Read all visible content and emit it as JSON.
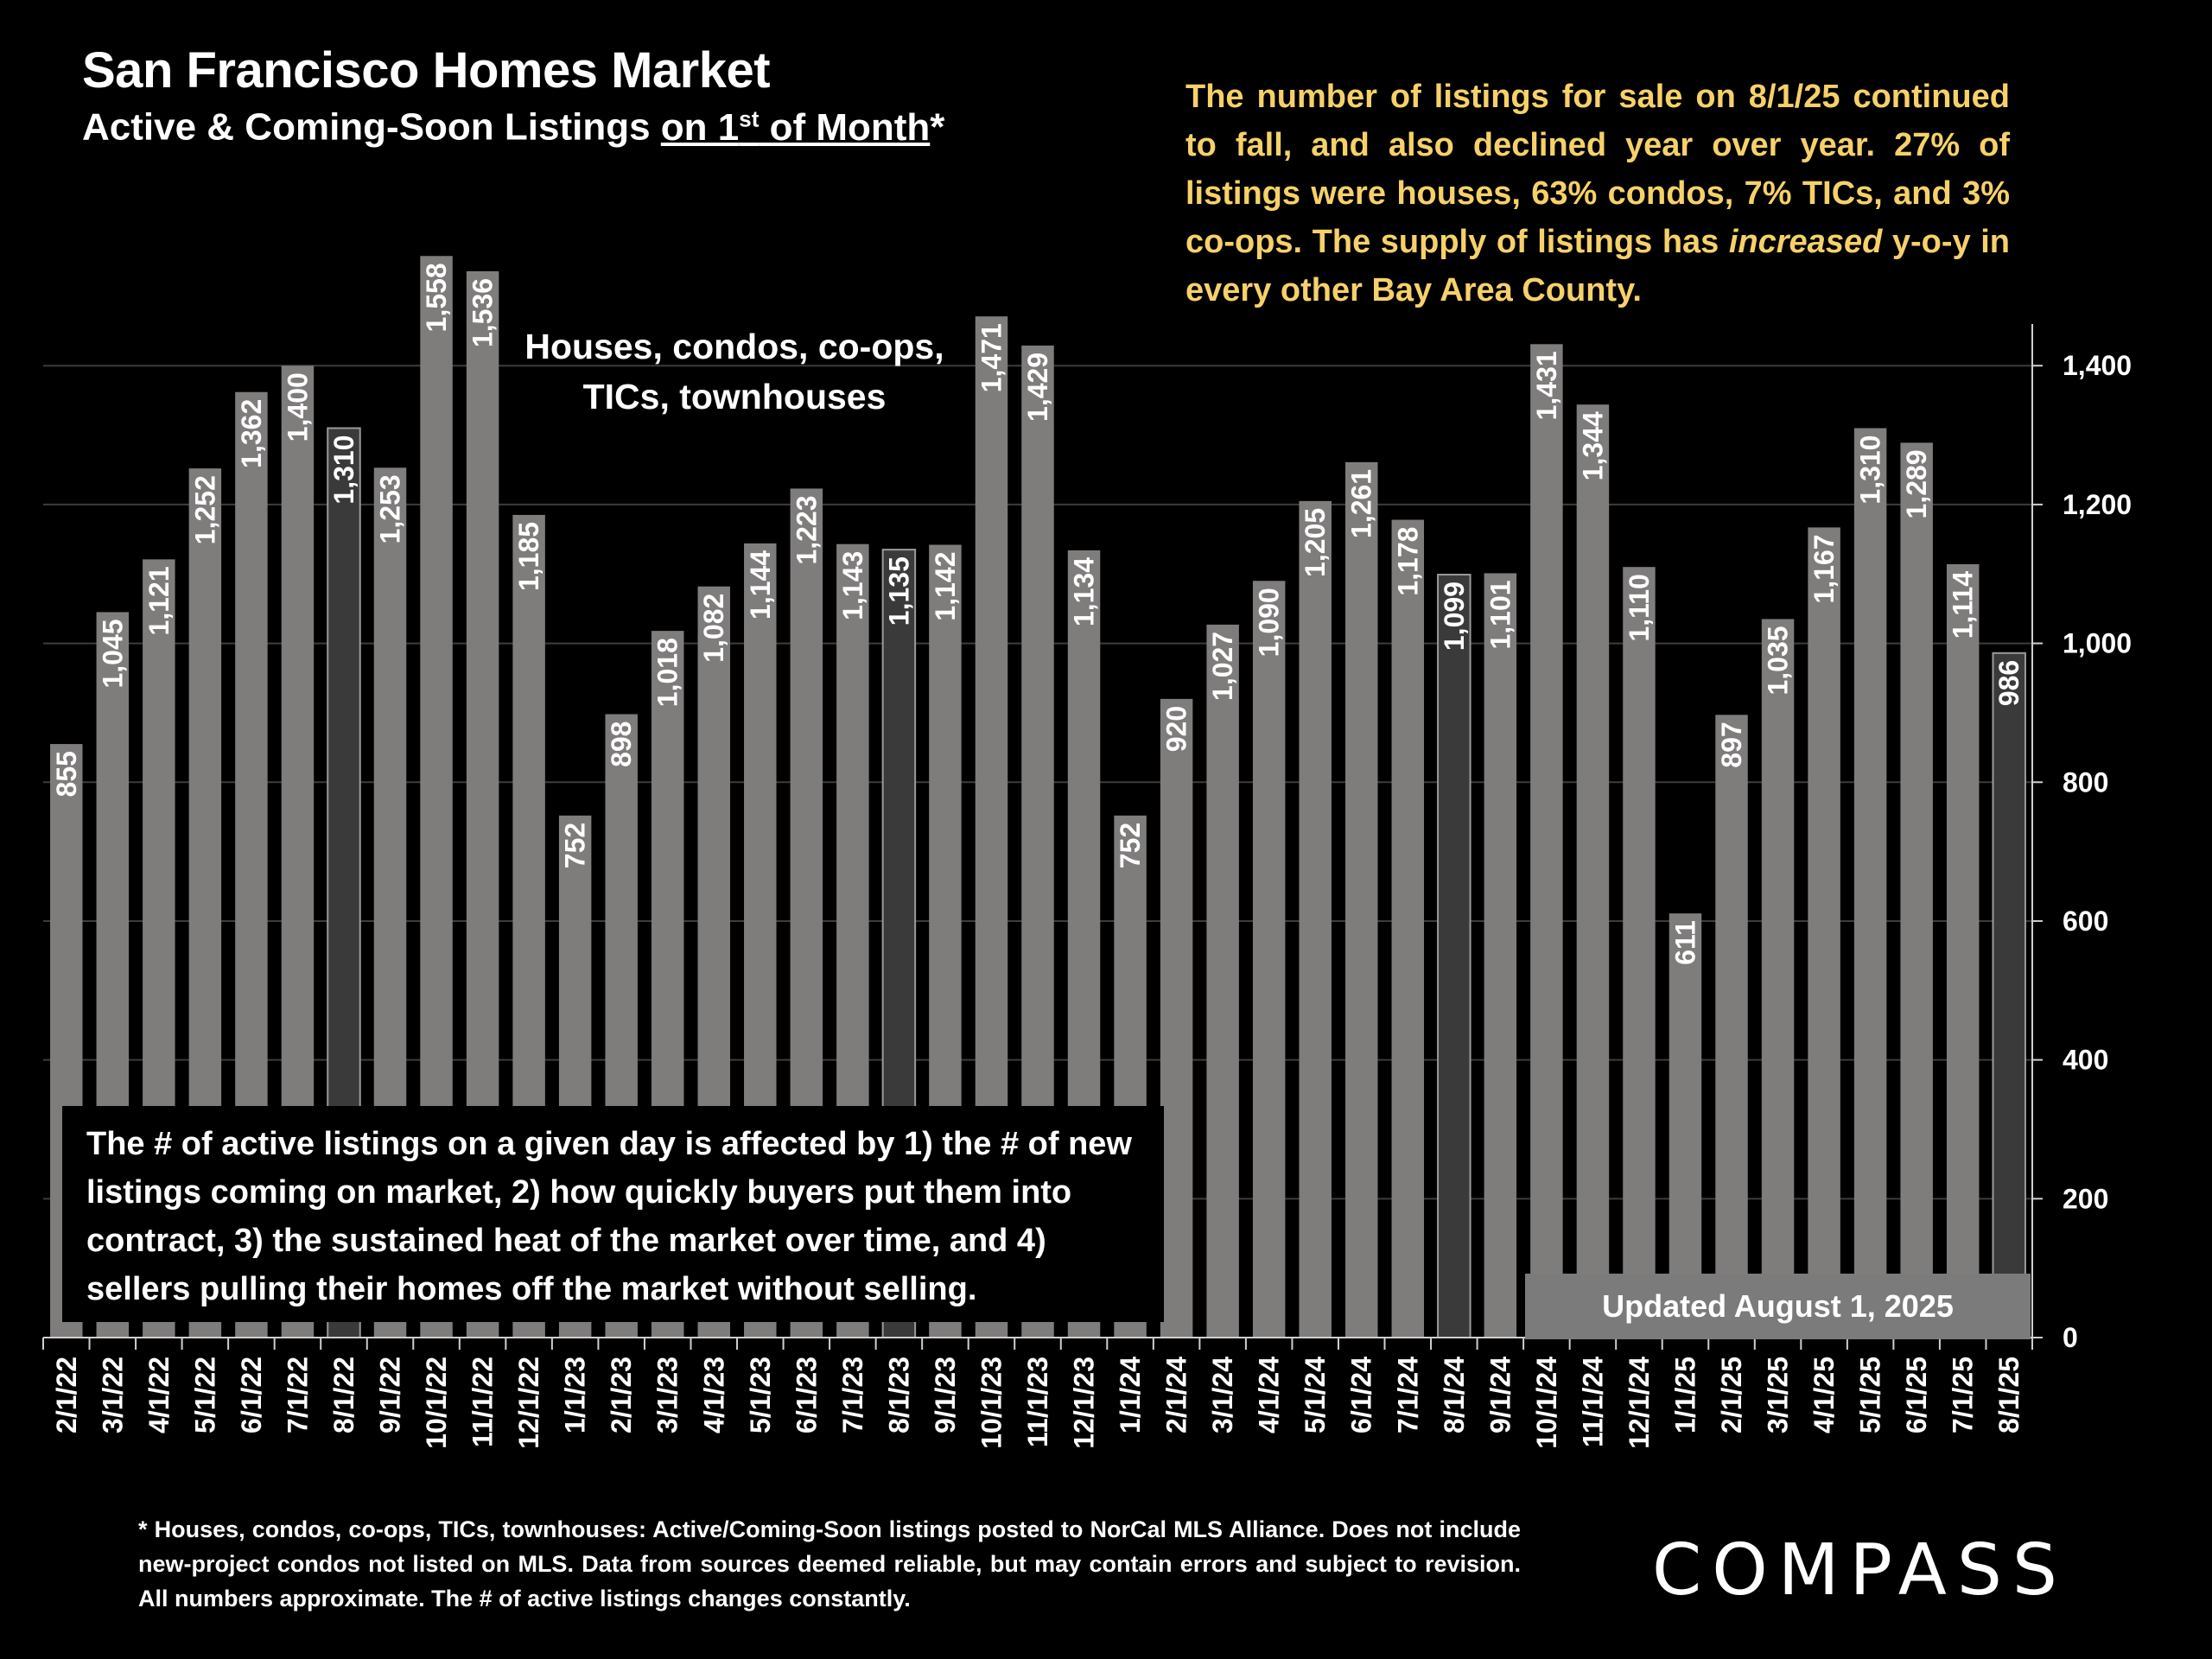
{
  "title": "San Francisco Homes Market",
  "subtitle_prefix": "Active & Coming-Soon Listings ",
  "subtitle_underlined_a": "on 1",
  "subtitle_sup": "st",
  "subtitle_underlined_b": " of Month",
  "subtitle_suffix": "*",
  "note_html_parts": {
    "p1": "The number of listings for sale on 8/1/25 continued to fall, and also declined year over year. 27% of listings were houses, 63% condos, 7% TICs, and 3% co-ops. The supply of listings has ",
    "em": "increased",
    "p2": " y-o-y in every other Bay Area County."
  },
  "inset_label": "Houses, condos, co-ops, TICs, townhouses",
  "explain_text": "The # of active listings on a given day is affected by 1) the # of new listings coming on market, 2) how quickly buyers put them into contract, 3) the sustained heat of the market over time, and 4) sellers pulling their homes off the market without selling.",
  "updated_text": "Updated August 1, 2025",
  "footnote": "* Houses, condos, co-ops, TICs, townhouses: Active/Coming-Soon listings posted to NorCal MLS Alliance. Does not include new-project condos not listed on MLS. Data from sources deemed reliable, but may contain errors and subject to revision. All numbers approximate. The # of active listings changes constantly.",
  "logo": "COMPASS",
  "colors": {
    "bar": "#7f7c7c",
    "bar_highlight": "#3a3a3a",
    "grid": "#3c3c3c",
    "note": "#f6d16a",
    "background": "#000000"
  },
  "chart_data": {
    "type": "bar",
    "categories": [
      "2/1/22",
      "3/1/22",
      "4/1/22",
      "5/1/22",
      "6/1/22",
      "7/1/22",
      "8/1/22",
      "9/1/22",
      "10/1/22",
      "11/1/22",
      "12/1/22",
      "1/1/23",
      "2/1/23",
      "3/1/23",
      "4/1/23",
      "5/1/23",
      "6/1/23",
      "7/1/23",
      "8/1/23",
      "9/1/23",
      "10/1/23",
      "11/1/23",
      "12/1/23",
      "1/1/24",
      "2/1/24",
      "3/1/24",
      "4/1/24",
      "5/1/24",
      "6/1/24",
      "7/1/24",
      "8/1/24",
      "9/1/24",
      "10/1/24",
      "11/1/24",
      "12/1/24",
      "1/1/25",
      "2/1/25",
      "3/1/25",
      "4/1/25",
      "5/1/25",
      "6/1/25",
      "7/1/25",
      "8/1/25"
    ],
    "values": [
      855,
      1045,
      1121,
      1252,
      1362,
      1400,
      1310,
      1253,
      1558,
      1536,
      1185,
      752,
      898,
      1018,
      1082,
      1144,
      1223,
      1143,
      1135,
      1142,
      1471,
      1429,
      1134,
      752,
      920,
      1027,
      1090,
      1205,
      1261,
      1178,
      1099,
      1101,
      1431,
      1344,
      1110,
      611,
      897,
      1035,
      1167,
      1310,
      1289,
      1114,
      986
    ],
    "value_labels": [
      "855",
      "1,045",
      "1,121",
      "1,252",
      "1,362",
      "1,400",
      "1,310",
      "1,253",
      "1,558",
      "1,536",
      "1,185",
      "752",
      "898",
      "1,018",
      "1,082",
      "1,144",
      "1,223",
      "1,143",
      "1,135",
      "1,142",
      "1,471",
      "1,429",
      "1,134",
      "752",
      "920",
      "1,027",
      "1,090",
      "1,205",
      "1,261",
      "1,178",
      "1,099",
      "1,101",
      "1,431",
      "1,344",
      "1,110",
      "611",
      "897",
      "1,035",
      "1,167",
      "1,310",
      "1,289",
      "1,114",
      "986"
    ],
    "highlighted": [
      "8/1/22",
      "8/1/23",
      "8/1/24",
      "8/1/25"
    ],
    "ylim": [
      0,
      1460
    ],
    "yticks": [
      0,
      200,
      400,
      600,
      800,
      1000,
      1200,
      1400
    ],
    "ytick_labels": [
      "0",
      "200",
      "400",
      "600",
      "800",
      "1,000",
      "1,200",
      "1,400"
    ],
    "y_axis_side": "right",
    "grid": true,
    "xlabel": "",
    "ylabel": ""
  }
}
